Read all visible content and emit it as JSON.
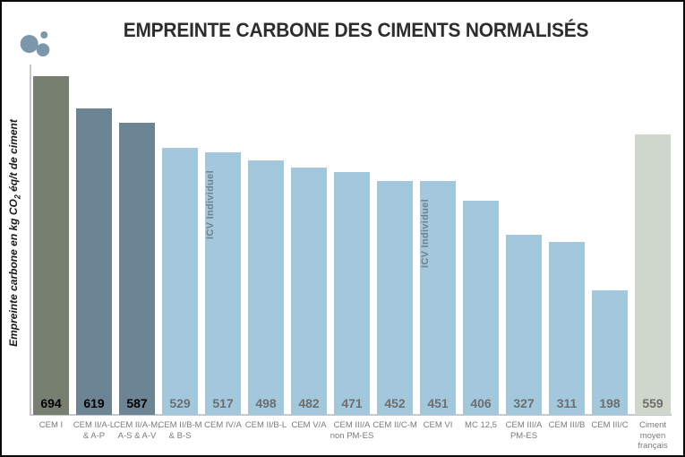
{
  "header": {
    "title": "EMPREINTE CARBONE DES CIMENTS NORMALISÉS"
  },
  "y_axis": {
    "label_prefix": "Empreinte carbone en kg CO",
    "label_sub": "2",
    "label_suffix": " éq/t de ciment"
  },
  "chart_data": {
    "type": "bar",
    "title": "EMPREINTE CARBONE DES CIMENTS NORMALISÉS",
    "ylabel": "Empreinte carbone en kg CO2 éq/t de ciment",
    "xlabel": "",
    "grid": false,
    "legend": false,
    "value_labels_position": "inside-bottom",
    "categories": [
      "CEM I",
      "CEM II/A-L & A-P",
      "CEM II/A-M, A-S & A-V",
      "CEM II/B-M & B-S",
      "CEM IV/A",
      "CEM II/B-L",
      "CEM V/A",
      "CEM III/A non PM-ES",
      "CEM II/C-M",
      "CEM VI",
      "MC 12,5",
      "CEM III/A PM-ES",
      "CEM III/B",
      "CEM III/C",
      "Ciment moyen français"
    ],
    "values": [
      694,
      619,
      587,
      529,
      517,
      498,
      482,
      471,
      452,
      451,
      406,
      327,
      311,
      198,
      559
    ],
    "bars": [
      {
        "label": "CEM I",
        "label_lines": [
          "CEM I"
        ],
        "value": 694,
        "color": "#767F70",
        "value_color": "#000000"
      },
      {
        "label": "CEM II/A-L & A-P",
        "label_lines": [
          "CEM II/A-L",
          "& A-P"
        ],
        "value": 619,
        "color": "#6C8493",
        "value_color": "#000000"
      },
      {
        "label": "CEM II/A-M, A-S & A-V",
        "label_lines": [
          "CEM II/A-M,",
          "A-S & A-V"
        ],
        "value": 587,
        "color": "#6C8493",
        "value_color": "#000000"
      },
      {
        "label": "CEM II/B-M & B-S",
        "label_lines": [
          "CEM II/B-M",
          "& B-S"
        ],
        "value": 529,
        "color": "#A3C7DD",
        "value_color": "#6E6E6E"
      },
      {
        "label": "CEM IV/A",
        "label_lines": [
          "CEM IV/A"
        ],
        "value": 517,
        "color": "#A3C7DD",
        "value_color": "#6E6E6E"
      },
      {
        "label": "CEM II/B-L",
        "label_lines": [
          "CEM II/B-L"
        ],
        "value": 498,
        "color": "#A3C7DD",
        "value_color": "#6E6E6E"
      },
      {
        "label": "CEM V/A",
        "label_lines": [
          "CEM V/A"
        ],
        "value": 482,
        "color": "#A3C7DD",
        "value_color": "#6E6E6E"
      },
      {
        "label": "CEM III/A non PM-ES",
        "label_lines": [
          "CEM III/A",
          "non PM-ES"
        ],
        "value": 471,
        "color": "#A3C7DD",
        "value_color": "#6E6E6E"
      },
      {
        "label": "CEM II/C-M",
        "label_lines": [
          "CEM II/C-M"
        ],
        "value": 452,
        "color": "#A3C7DD",
        "value_color": "#6E6E6E"
      },
      {
        "label": "CEM VI",
        "label_lines": [
          "CEM VI"
        ],
        "value": 451,
        "color": "#A3C7DD",
        "value_color": "#6E6E6E"
      },
      {
        "label": "MC 12,5",
        "label_lines": [
          "MC 12,5"
        ],
        "value": 406,
        "color": "#A3C7DD",
        "value_color": "#6E6E6E"
      },
      {
        "label": "CEM III/A PM-ES",
        "label_lines": [
          "CEM III/A",
          "PM-ES"
        ],
        "value": 327,
        "color": "#A3C7DD",
        "value_color": "#6E6E6E"
      },
      {
        "label": "CEM III/B",
        "label_lines": [
          "CEM III/B"
        ],
        "value": 311,
        "color": "#A3C7DD",
        "value_color": "#6E6E6E"
      },
      {
        "label": "CEM III/C",
        "label_lines": [
          "CEM III/C"
        ],
        "value": 198,
        "color": "#A3C7DD",
        "value_color": "#6E6E6E"
      },
      {
        "label": "Ciment moyen français",
        "label_lines": [
          "Ciment",
          "moyen",
          "français"
        ],
        "value": 559,
        "color": "#CFD6CB",
        "value_color": "#6E6E6E"
      }
    ],
    "annotations": [
      {
        "text": "ICV Individuel",
        "bar_index": 4
      },
      {
        "text": "ICV Individuel",
        "bar_index": 9
      }
    ]
  },
  "colors": {
    "bar_dark_olive": "#767F70",
    "bar_slate": "#6C8493",
    "bar_light_blue": "#A3C7DD",
    "bar_sage": "#CFD6CB",
    "value_dark": "#000000",
    "value_gray": "#6E6E6E",
    "category_label": "#7A7A7A",
    "annotation_text": "#72828C",
    "axis_line": "#C6C9CB",
    "title_text": "#2D2D2D",
    "logo": "#7B97A9"
  }
}
